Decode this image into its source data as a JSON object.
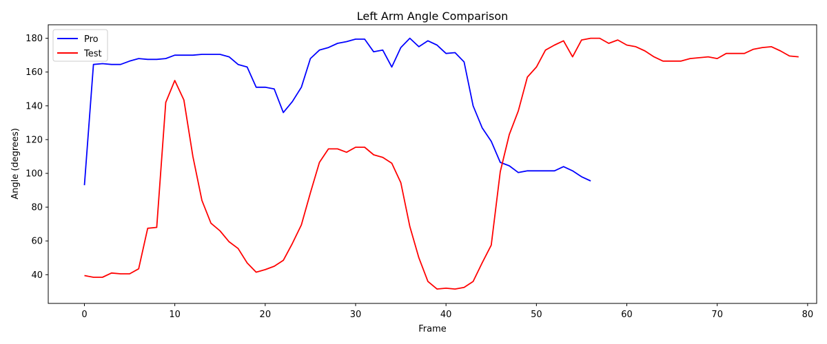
{
  "chart_data": {
    "type": "line",
    "title": "Left Arm Angle Comparison",
    "xlabel": "Frame",
    "ylabel": "Angle (degrees)",
    "xlim": [
      -4,
      81
    ],
    "ylim": [
      23,
      188
    ],
    "xticks": [
      0,
      10,
      20,
      30,
      40,
      50,
      60,
      70,
      80
    ],
    "yticks": [
      40,
      60,
      80,
      100,
      120,
      140,
      160,
      180
    ],
    "grid": false,
    "legend_position": "top-left",
    "series": [
      {
        "name": "Pro",
        "color": "#0000ff",
        "x": [
          0,
          1,
          2,
          3,
          4,
          5,
          6,
          7,
          8,
          9,
          10,
          11,
          12,
          13,
          14,
          15,
          16,
          17,
          18,
          19,
          20,
          21,
          22,
          23,
          24,
          25,
          26,
          27,
          28,
          29,
          30,
          31,
          32,
          33,
          34,
          35,
          36,
          37,
          38,
          39,
          40,
          41,
          42,
          43,
          44,
          45,
          46,
          47,
          48,
          49,
          50,
          51,
          52,
          53,
          54,
          55,
          56
        ],
        "y": [
          93,
          164.5,
          165,
          164.5,
          164.5,
          166.5,
          168,
          167.5,
          167.5,
          168,
          170,
          170,
          170,
          170.5,
          170.5,
          170.5,
          169,
          164.5,
          163,
          151,
          151,
          150,
          136,
          142.5,
          151,
          168,
          173,
          174.5,
          177,
          178,
          179.5,
          179.5,
          172,
          173,
          163,
          174.5,
          180,
          175,
          178.5,
          176,
          171,
          171.5,
          166,
          140,
          127,
          119,
          106.5,
          104.5,
          100.5,
          101.5,
          101.5,
          101.5,
          101.5,
          104,
          101.5,
          98,
          95.5
        ]
      },
      {
        "name": "Test",
        "color": "#ff0000",
        "x": [
          0,
          1,
          2,
          3,
          4,
          5,
          6,
          7,
          8,
          9,
          10,
          11,
          12,
          13,
          14,
          15,
          16,
          17,
          18,
          19,
          20,
          21,
          22,
          23,
          24,
          25,
          26,
          27,
          28,
          29,
          30,
          31,
          32,
          33,
          34,
          35,
          36,
          37,
          38,
          39,
          40,
          41,
          42,
          43,
          44,
          45,
          46,
          47,
          48,
          49,
          50,
          51,
          52,
          53,
          54,
          55,
          56,
          57,
          58,
          59,
          60,
          61,
          62,
          63,
          64,
          65,
          66,
          67,
          68,
          69,
          70,
          71,
          72,
          73,
          74,
          75,
          76,
          77,
          78,
          79
        ],
        "y": [
          39.5,
          38.5,
          38.5,
          41,
          40.5,
          40.5,
          43.5,
          67.5,
          68,
          142,
          155,
          143.5,
          110,
          84,
          70.5,
          66,
          59.5,
          55.5,
          47,
          41.5,
          43,
          45,
          48.5,
          58.5,
          69.5,
          88.5,
          106.5,
          114.5,
          114.5,
          112.5,
          115.5,
          115.5,
          111,
          109.5,
          106,
          94.5,
          68.5,
          50,
          36,
          31.5,
          32,
          31.5,
          32.5,
          36,
          47,
          57.5,
          101,
          123,
          137,
          157,
          163,
          173,
          176,
          178.5,
          169,
          179,
          180,
          180,
          177,
          179,
          176,
          175,
          172.5,
          169,
          166.5,
          166.5,
          166.5,
          168,
          168.5,
          169,
          168,
          171,
          171,
          171,
          173.5,
          174.5,
          175,
          172.5,
          169.5,
          169
        ]
      }
    ]
  }
}
